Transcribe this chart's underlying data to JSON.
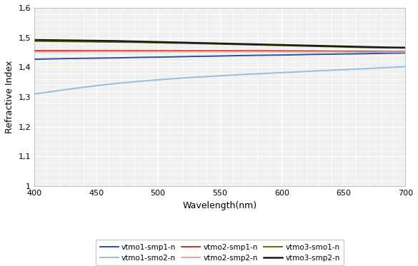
{
  "title": "",
  "xlabel": "Wavelength(nm)",
  "ylabel": "Refractive Index",
  "xlim": [
    400,
    700
  ],
  "ylim": [
    1.0,
    1.6
  ],
  "yticks": [
    1.0,
    1.1,
    1.2,
    1.3,
    1.4,
    1.5,
    1.6
  ],
  "xticks": [
    400,
    450,
    500,
    550,
    600,
    650,
    700
  ],
  "series": [
    {
      "label": "vtmo1-smp1-n",
      "color": "#2E4FA3",
      "linewidth": 1.4,
      "wavelengths": [
        400,
        420,
        440,
        460,
        480,
        500,
        520,
        540,
        560,
        580,
        600,
        620,
        640,
        660,
        680,
        700
      ],
      "values": [
        1.427,
        1.429,
        1.43,
        1.431,
        1.433,
        1.434,
        1.436,
        1.437,
        1.439,
        1.44,
        1.441,
        1.443,
        1.444,
        1.445,
        1.447,
        1.448
      ]
    },
    {
      "label": "vtmo1-smo2-n",
      "color": "#92BFDE",
      "linewidth": 1.4,
      "wavelengths": [
        400,
        420,
        440,
        460,
        480,
        500,
        520,
        540,
        560,
        580,
        600,
        620,
        640,
        660,
        680,
        700
      ],
      "values": [
        1.31,
        1.322,
        1.333,
        1.343,
        1.351,
        1.358,
        1.364,
        1.369,
        1.374,
        1.378,
        1.382,
        1.386,
        1.39,
        1.394,
        1.398,
        1.402
      ]
    },
    {
      "label": "vtmo2-smp1-n",
      "color": "#C0392B",
      "linewidth": 1.4,
      "wavelengths": [
        400,
        420,
        440,
        460,
        480,
        500,
        520,
        540,
        560,
        580,
        600,
        620,
        640,
        660,
        680,
        700
      ],
      "values": [
        1.456,
        1.456,
        1.456,
        1.456,
        1.456,
        1.456,
        1.456,
        1.456,
        1.456,
        1.456,
        1.455,
        1.455,
        1.454,
        1.454,
        1.453,
        1.453
      ]
    },
    {
      "label": "vtmo2-smp2-n",
      "color": "#E8A598",
      "linewidth": 1.4,
      "wavelengths": [
        400,
        420,
        440,
        460,
        480,
        500,
        520,
        540,
        560,
        580,
        600,
        620,
        640,
        660,
        680,
        700
      ],
      "values": [
        1.452,
        1.452,
        1.453,
        1.453,
        1.453,
        1.453,
        1.453,
        1.453,
        1.453,
        1.453,
        1.452,
        1.452,
        1.452,
        1.451,
        1.451,
        1.451
      ]
    },
    {
      "label": "vtmo3-smo1-n",
      "color": "#6B6B00",
      "linewidth": 1.4,
      "wavelengths": [
        400,
        420,
        440,
        460,
        480,
        500,
        520,
        540,
        560,
        580,
        600,
        620,
        640,
        660,
        680,
        700
      ],
      "values": [
        1.488,
        1.487,
        1.486,
        1.485,
        1.484,
        1.482,
        1.481,
        1.479,
        1.477,
        1.475,
        1.473,
        1.471,
        1.469,
        1.467,
        1.466,
        1.465
      ]
    },
    {
      "label": "vtmo3-smp2-n",
      "color": "#1A1A1A",
      "linewidth": 1.8,
      "wavelengths": [
        400,
        420,
        440,
        460,
        480,
        500,
        520,
        540,
        560,
        580,
        600,
        620,
        640,
        660,
        680,
        700
      ],
      "values": [
        1.492,
        1.491,
        1.49,
        1.489,
        1.487,
        1.485,
        1.483,
        1.481,
        1.479,
        1.477,
        1.475,
        1.473,
        1.471,
        1.469,
        1.467,
        1.466
      ]
    }
  ],
  "background_color": "#FFFFFF",
  "plot_bg_color": "#F0F0F0",
  "grid_color": "#FFFFFF",
  "minor_grid_color": "#FFFFFF"
}
